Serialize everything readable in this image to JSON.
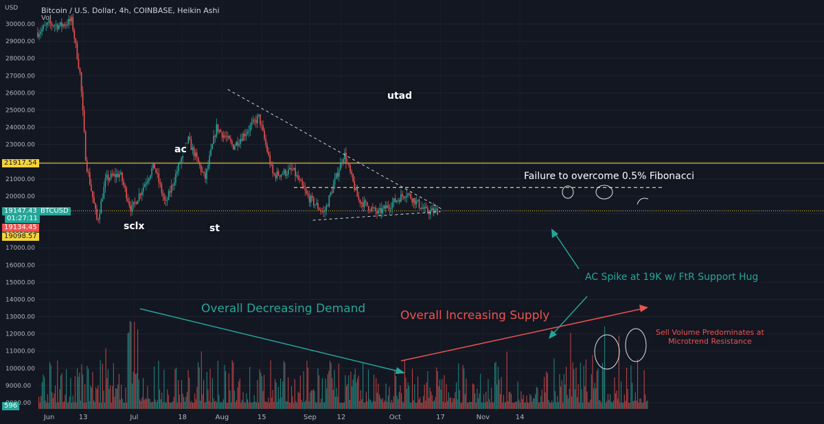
{
  "header": {
    "symbol_line": "Bitcoin / U.S. Dollar, 4h, COINBASE, Heikin Ashi",
    "volume_label": "Vol",
    "currency": "USD"
  },
  "price_tags": {
    "level": "21917.54",
    "ticker_name": "BTCUSD",
    "last_price": "19147.43",
    "countdown": "01:27:11",
    "ask": "19134.45",
    "bid": "19098.57",
    "volume_last": "596"
  },
  "colors": {
    "background": "#131722",
    "bull": "#26a69a",
    "bear": "#ef5350",
    "level_line": "#f5d33b",
    "annotation_green": "#26a69a",
    "annotation_red": "#ef5350"
  },
  "annotations": {
    "utad": "utad",
    "ac": "ac",
    "sclx": "sclx",
    "st": "st",
    "fib_note": "Failure to overcome 0.5% Fibonacci",
    "ac_spike": "AC Spike at 19K w/ FtR Support Hug",
    "demand": "Overall Decreasing Demand",
    "supply": "Overall Increasing Supply",
    "sell_volume_line1": "Sell Volume Predominates at",
    "sell_volume_line2": "Microtrend Resistance"
  },
  "chart_data": {
    "type": "candlestick",
    "title": "Bitcoin / U.S. Dollar, 4h, COINBASE, Heikin Ashi",
    "ylabel": "USD",
    "y_ticks": [
      "8000.00",
      "9000.00",
      "10000.00",
      "11000.00",
      "12000.00",
      "13000.00",
      "14000.00",
      "15000.00",
      "16000.00",
      "17000.00",
      "18000.00",
      "19000.00",
      "20000.00",
      "21000.00",
      "22000.00",
      "23000.00",
      "24000.00",
      "25000.00",
      "26000.00",
      "27000.00",
      "28000.00",
      "29000.00",
      "30000.00"
    ],
    "x_ticks": [
      "Jun",
      "13",
      "Jul",
      "18",
      "Aug",
      "15",
      "Sep",
      "12",
      "Oct",
      "17",
      "Nov",
      "14"
    ],
    "price_path": [
      {
        "date": "2022-05-28",
        "price": 29500
      },
      {
        "date": "2022-06-01",
        "price": 30000
      },
      {
        "date": "2022-06-05",
        "price": 29900
      },
      {
        "date": "2022-06-09",
        "price": 30200
      },
      {
        "date": "2022-06-12",
        "price": 27000
      },
      {
        "date": "2022-06-14",
        "price": 22000
      },
      {
        "date": "2022-06-18",
        "price": 18500
      },
      {
        "date": "2022-06-21",
        "price": 21000
      },
      {
        "date": "2022-06-26",
        "price": 21300
      },
      {
        "date": "2022-06-30",
        "price": 19200
      },
      {
        "date": "2022-07-08",
        "price": 21800
      },
      {
        "date": "2022-07-12",
        "price": 19500
      },
      {
        "date": "2022-07-20",
        "price": 23300
      },
      {
        "date": "2022-07-26",
        "price": 21000
      },
      {
        "date": "2022-07-30",
        "price": 24000
      },
      {
        "date": "2022-08-05",
        "price": 22900
      },
      {
        "date": "2022-08-14",
        "price": 24600
      },
      {
        "date": "2022-08-19",
        "price": 21200
      },
      {
        "date": "2022-08-26",
        "price": 21500
      },
      {
        "date": "2022-08-31",
        "price": 20000
      },
      {
        "date": "2022-09-06",
        "price": 19000
      },
      {
        "date": "2022-09-13",
        "price": 22500
      },
      {
        "date": "2022-09-18",
        "price": 19800
      },
      {
        "date": "2022-09-25",
        "price": 19000
      },
      {
        "date": "2022-10-05",
        "price": 20200
      },
      {
        "date": "2022-10-12",
        "price": 19100
      },
      {
        "date": "2022-10-16",
        "price": 19150
      }
    ],
    "horizontal_levels": [
      21917.54,
      20500,
      19147.43
    ],
    "trendlines": [
      {
        "from": {
          "date": "2022-08-03",
          "price": 26200
        },
        "to": {
          "date": "2022-10-18",
          "price": 19200
        },
        "style": "dashed"
      },
      {
        "from": {
          "date": "2022-09-02",
          "price": 18600
        },
        "to": {
          "date": "2022-10-17",
          "price": 19100
        },
        "style": "dashed"
      }
    ],
    "volume": {
      "ylim": [
        7600,
        14600
      ]
    }
  }
}
